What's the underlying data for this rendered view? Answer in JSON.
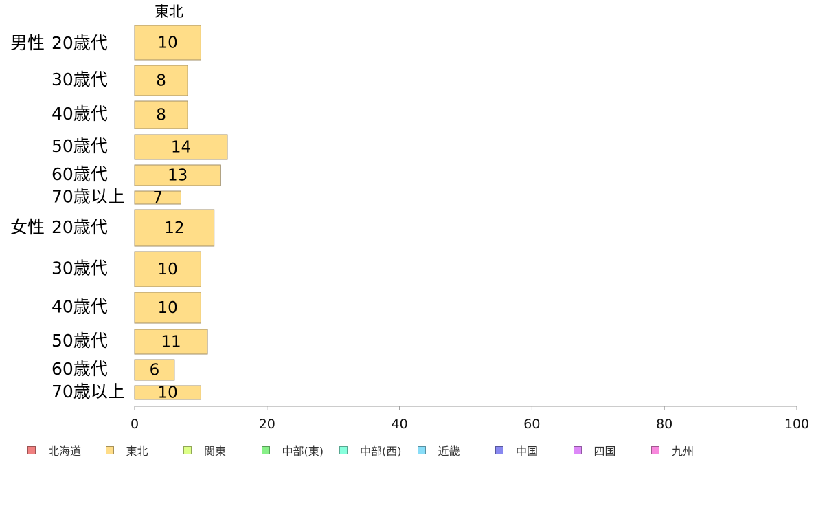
{
  "chart_data": {
    "type": "bar",
    "orientation": "horizontal",
    "column_title": "東北",
    "groups": [
      {
        "label": "男性",
        "rows": [
          {
            "label": "20歳代",
            "value": 10
          },
          {
            "label": "30歳代",
            "value": 8
          },
          {
            "label": "40歳代",
            "value": 8
          },
          {
            "label": "50歳代",
            "value": 14
          },
          {
            "label": "60歳代",
            "value": 13
          },
          {
            "label": "70歳以上",
            "value": 7
          }
        ]
      },
      {
        "label": "女性",
        "rows": [
          {
            "label": "20歳代",
            "value": 12
          },
          {
            "label": "30歳代",
            "value": 10
          },
          {
            "label": "40歳代",
            "value": 10
          },
          {
            "label": "50歳代",
            "value": 11
          },
          {
            "label": "60歳代",
            "value": 6
          },
          {
            "label": "70歳以上",
            "value": 10
          }
        ]
      }
    ],
    "xlim": [
      0,
      100
    ],
    "x_ticks": [
      0,
      20,
      40,
      60,
      80,
      100
    ],
    "bar_color": "#FFDD88",
    "legend_position": "bottom",
    "legend": [
      {
        "name": "北海道",
        "color": "#F08080"
      },
      {
        "name": "東北",
        "color": "#FFDD88"
      },
      {
        "name": "関東",
        "color": "#DDFF88"
      },
      {
        "name": "中部(東)",
        "color": "#88F088"
      },
      {
        "name": "中部(西)",
        "color": "#88FFDD"
      },
      {
        "name": "近畿",
        "color": "#88DDF8"
      },
      {
        "name": "中国",
        "color": "#8888F0"
      },
      {
        "name": "四国",
        "color": "#DD88F8"
      },
      {
        "name": "九州",
        "color": "#F888DD"
      }
    ]
  }
}
